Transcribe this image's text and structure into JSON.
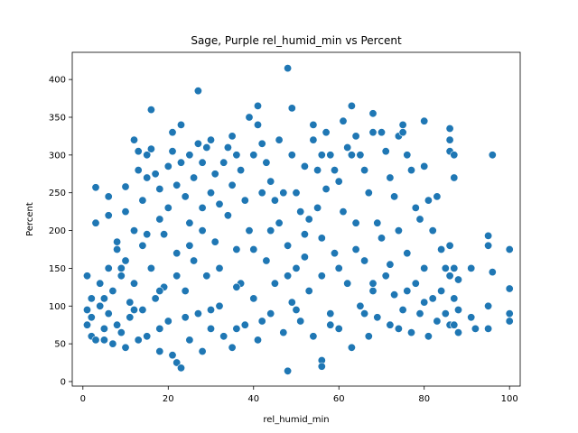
{
  "chart_data": {
    "type": "scatter",
    "title": "Sage, Purple rel_humid_min vs Percent",
    "xlabel": "rel_humid_min",
    "ylabel": "Percent",
    "xlim": [
      -2.5,
      102.5
    ],
    "ylim": [
      -6,
      436
    ],
    "xticks": [
      0,
      20,
      40,
      60,
      80,
      100
    ],
    "yticks": [
      0,
      50,
      100,
      150,
      200,
      250,
      300,
      350,
      400
    ],
    "grid": false,
    "legend": "none",
    "point_color": "#1f77b4",
    "point_edge_color": "#ffffff",
    "points": [
      [
        1,
        140
      ],
      [
        1,
        95
      ],
      [
        1,
        75
      ],
      [
        2,
        85
      ],
      [
        2,
        60
      ],
      [
        3,
        257
      ],
      [
        3,
        210
      ],
      [
        3,
        55
      ],
      [
        4,
        100
      ],
      [
        4,
        130
      ],
      [
        5,
        70
      ],
      [
        5,
        110
      ],
      [
        6,
        245
      ],
      [
        6,
        220
      ],
      [
        6,
        150
      ],
      [
        6,
        90
      ],
      [
        7,
        50
      ],
      [
        7,
        120
      ],
      [
        8,
        185
      ],
      [
        8,
        175
      ],
      [
        8,
        75
      ],
      [
        9,
        65
      ],
      [
        9,
        140
      ],
      [
        10,
        258
      ],
      [
        10,
        225
      ],
      [
        10,
        160
      ],
      [
        10,
        45
      ],
      [
        11,
        105
      ],
      [
        11,
        85
      ],
      [
        12,
        320
      ],
      [
        12,
        200
      ],
      [
        12,
        130
      ],
      [
        13,
        305
      ],
      [
        13,
        280
      ],
      [
        13,
        55
      ],
      [
        14,
        240
      ],
      [
        14,
        180
      ],
      [
        14,
        95
      ],
      [
        15,
        300
      ],
      [
        15,
        270
      ],
      [
        15,
        60
      ],
      [
        16,
        360
      ],
      [
        16,
        308
      ],
      [
        16,
        150
      ],
      [
        17,
        275
      ],
      [
        17,
        110
      ],
      [
        18,
        255
      ],
      [
        18,
        215
      ],
      [
        18,
        40
      ],
      [
        19,
        195
      ],
      [
        19,
        125
      ],
      [
        20,
        285
      ],
      [
        20,
        230
      ],
      [
        20,
        80
      ],
      [
        21,
        330
      ],
      [
        21,
        305
      ],
      [
        21,
        35
      ],
      [
        22,
        260
      ],
      [
        22,
        170
      ],
      [
        22,
        25
      ],
      [
        23,
        340
      ],
      [
        23,
        290
      ],
      [
        23,
        18
      ],
      [
        24,
        245
      ],
      [
        24,
        120
      ],
      [
        25,
        300
      ],
      [
        25,
        210
      ],
      [
        25,
        55
      ],
      [
        26,
        270
      ],
      [
        26,
        160
      ],
      [
        27,
        385
      ],
      [
        27,
        315
      ],
      [
        27,
        90
      ],
      [
        28,
        290
      ],
      [
        28,
        230
      ],
      [
        28,
        40
      ],
      [
        29,
        310
      ],
      [
        29,
        140
      ],
      [
        30,
        320
      ],
      [
        30,
        250
      ],
      [
        30,
        70
      ],
      [
        31,
        275
      ],
      [
        31,
        185
      ],
      [
        32,
        235
      ],
      [
        32,
        100
      ],
      [
        33,
        290
      ],
      [
        33,
        60
      ],
      [
        34,
        310
      ],
      [
        34,
        220
      ],
      [
        35,
        325
      ],
      [
        35,
        260
      ],
      [
        35,
        45
      ],
      [
        36,
        300
      ],
      [
        36,
        175
      ],
      [
        37,
        280
      ],
      [
        37,
        130
      ],
      [
        38,
        240
      ],
      [
        38,
        75
      ],
      [
        39,
        350
      ],
      [
        39,
        200
      ],
      [
        40,
        300
      ],
      [
        40,
        110
      ],
      [
        41,
        365
      ],
      [
        41,
        340
      ],
      [
        41,
        55
      ],
      [
        42,
        315
      ],
      [
        42,
        250
      ],
      [
        43,
        290
      ],
      [
        43,
        160
      ],
      [
        44,
        265
      ],
      [
        44,
        90
      ],
      [
        45,
        240
      ],
      [
        45,
        130
      ],
      [
        46,
        320
      ],
      [
        46,
        210
      ],
      [
        47,
        250
      ],
      [
        47,
        65
      ],
      [
        48,
        415
      ],
      [
        48,
        180
      ],
      [
        48,
        14
      ],
      [
        49,
        362
      ],
      [
        49,
        300
      ],
      [
        49,
        105
      ],
      [
        50,
        250
      ],
      [
        50,
        150
      ],
      [
        51,
        225
      ],
      [
        51,
        80
      ],
      [
        52,
        285
      ],
      [
        52,
        195
      ],
      [
        53,
        215
      ],
      [
        53,
        120
      ],
      [
        54,
        340
      ],
      [
        54,
        320
      ],
      [
        54,
        60
      ],
      [
        55,
        280
      ],
      [
        55,
        230
      ],
      [
        56,
        300
      ],
      [
        56,
        140
      ],
      [
        56,
        28
      ],
      [
        56,
        20
      ],
      [
        57,
        330
      ],
      [
        57,
        255
      ],
      [
        58,
        300
      ],
      [
        58,
        90
      ],
      [
        59,
        280
      ],
      [
        59,
        170
      ],
      [
        60,
        265
      ],
      [
        60,
        70
      ],
      [
        61,
        345
      ],
      [
        61,
        225
      ],
      [
        62,
        310
      ],
      [
        62,
        130
      ],
      [
        63,
        365
      ],
      [
        63,
        300
      ],
      [
        63,
        45
      ],
      [
        64,
        325
      ],
      [
        64,
        210
      ],
      [
        65,
        300
      ],
      [
        65,
        100
      ],
      [
        66,
        280
      ],
      [
        66,
        160
      ],
      [
        67,
        250
      ],
      [
        67,
        60
      ],
      [
        68,
        355
      ],
      [
        68,
        330
      ],
      [
        68,
        120
      ],
      [
        69,
        210
      ],
      [
        69,
        85
      ],
      [
        70,
        330
      ],
      [
        70,
        190
      ],
      [
        71,
        305
      ],
      [
        71,
        140
      ],
      [
        72,
        270
      ],
      [
        72,
        75
      ],
      [
        73,
        245
      ],
      [
        73,
        115
      ],
      [
        74,
        325
      ],
      [
        74,
        200
      ],
      [
        75,
        340
      ],
      [
        75,
        330
      ],
      [
        75,
        95
      ],
      [
        76,
        300
      ],
      [
        76,
        170
      ],
      [
        77,
        280
      ],
      [
        77,
        65
      ],
      [
        78,
        230
      ],
      [
        78,
        130
      ],
      [
        79,
        215
      ],
      [
        79,
        90
      ],
      [
        80,
        345
      ],
      [
        80,
        285
      ],
      [
        80,
        150
      ],
      [
        81,
        240
      ],
      [
        81,
        60
      ],
      [
        82,
        200
      ],
      [
        82,
        110
      ],
      [
        83,
        245
      ],
      [
        83,
        80
      ],
      [
        84,
        175
      ],
      [
        84,
        120
      ],
      [
        85,
        150
      ],
      [
        85,
        90
      ],
      [
        86,
        335
      ],
      [
        86,
        320
      ],
      [
        86,
        305
      ],
      [
        86,
        180
      ],
      [
        86,
        140
      ],
      [
        86,
        75
      ],
      [
        87,
        300
      ],
      [
        87,
        270
      ],
      [
        87,
        150
      ],
      [
        87,
        110
      ],
      [
        87,
        75
      ],
      [
        88,
        135
      ],
      [
        88,
        95
      ],
      [
        88,
        65
      ],
      [
        91,
        150
      ],
      [
        91,
        85
      ],
      [
        92,
        70
      ],
      [
        95,
        193
      ],
      [
        95,
        180
      ],
      [
        95,
        100
      ],
      [
        95,
        70
      ],
      [
        96,
        300
      ],
      [
        96,
        145
      ],
      [
        100,
        175
      ],
      [
        100,
        123
      ],
      [
        100,
        90
      ],
      [
        100,
        80
      ],
      [
        2,
        110
      ],
      [
        5,
        55
      ],
      [
        9,
        150
      ],
      [
        15,
        195
      ],
      [
        18,
        120
      ],
      [
        22,
        140
      ],
      [
        25,
        180
      ],
      [
        28,
        200
      ],
      [
        32,
        150
      ],
      [
        36,
        125
      ],
      [
        40,
        175
      ],
      [
        44,
        200
      ],
      [
        48,
        140
      ],
      [
        52,
        165
      ],
      [
        56,
        190
      ],
      [
        60,
        150
      ],
      [
        64,
        175
      ],
      [
        68,
        130
      ],
      [
        72,
        155
      ],
      [
        76,
        120
      ],
      [
        80,
        105
      ],
      [
        12,
        95
      ],
      [
        18,
        70
      ],
      [
        24,
        85
      ],
      [
        30,
        95
      ],
      [
        36,
        70
      ],
      [
        42,
        80
      ],
      [
        50,
        95
      ],
      [
        58,
        75
      ],
      [
        66,
        90
      ],
      [
        74,
        70
      ]
    ]
  }
}
